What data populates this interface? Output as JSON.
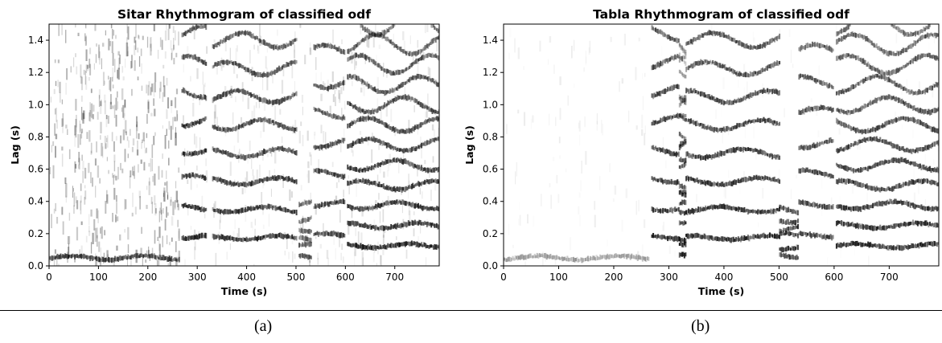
{
  "figure": {
    "caption_a": "(a)",
    "caption_b": "(b)"
  },
  "chart_data": [
    {
      "type": "heatmap",
      "title": "Sitar Rhythmogram of classified odf",
      "xlabel": "Time (s)",
      "ylabel": "Lag (s)",
      "xlim": [
        0,
        790
      ],
      "ylim": [
        0.0,
        1.5
      ],
      "xticks": [
        0,
        100,
        200,
        300,
        400,
        500,
        600,
        700
      ],
      "yticks": [
        0.0,
        0.2,
        0.4,
        0.6,
        0.8,
        1.0,
        1.2,
        1.4
      ],
      "xtick_labels": [
        "0",
        "100",
        "200",
        "300",
        "400",
        "500",
        "600",
        "700"
      ],
      "ytick_labels": [
        "0.0",
        "0.2",
        "0.4",
        "0.6",
        "0.8",
        "1.0",
        "1.2",
        "1.4"
      ],
      "colormap": "grayscale (white = low, black = high)",
      "colors": {
        "low": "#ffffff",
        "high": "#000000"
      },
      "segments": [
        {
          "start": 0,
          "end": 262,
          "lags": [
            0.05
          ],
          "background": 0.3,
          "ridge_level": 0.75
        },
        {
          "start": 268,
          "end": 318,
          "lags": [
            0.18,
            0.36,
            0.54,
            0.72,
            0.9,
            1.08,
            1.26,
            1.44
          ],
          "background": 0.12,
          "ridge_level": 0.85
        },
        {
          "start": 330,
          "end": 500,
          "lags": [
            0.175,
            0.35,
            0.525,
            0.7,
            0.875,
            1.05,
            1.225,
            1.4
          ],
          "background": 0.12,
          "ridge_level": 0.8
        },
        {
          "start": 505,
          "end": 530,
          "lags": [
            0.06,
            0.12,
            0.18,
            0.24,
            0.3,
            0.36
          ],
          "background": 0.15,
          "ridge_level": 0.65
        },
        {
          "start": 535,
          "end": 598,
          "lags": [
            0.19,
            0.38,
            0.57,
            0.76,
            0.95,
            1.14,
            1.33
          ],
          "background": 0.14,
          "ridge_level": 0.75
        },
        {
          "start": 603,
          "end": 790,
          "lags": [
            0.125,
            0.25,
            0.375,
            0.5,
            0.625,
            0.75,
            0.875,
            1.0,
            1.125,
            1.25,
            1.375,
            1.5
          ],
          "background": 0.12,
          "ridge_level": 0.85
        }
      ]
    },
    {
      "type": "heatmap",
      "title": "Tabla Rhythmogram of classified odf",
      "xlabel": "Time (s)",
      "ylabel": "Lag (s)",
      "xlim": [
        0,
        790
      ],
      "ylim": [
        0.0,
        1.5
      ],
      "xticks": [
        0,
        100,
        200,
        300,
        400,
        500,
        600,
        700
      ],
      "yticks": [
        0.0,
        0.2,
        0.4,
        0.6,
        0.8,
        1.0,
        1.2,
        1.4
      ],
      "xtick_labels": [
        "0",
        "100",
        "200",
        "300",
        "400",
        "500",
        "600",
        "700"
      ],
      "ytick_labels": [
        "0.0",
        "0.2",
        "0.4",
        "0.6",
        "0.8",
        "1.0",
        "1.2",
        "1.4"
      ],
      "colormap": "grayscale (white = low, black = high)",
      "colors": {
        "low": "#ffffff",
        "high": "#000000"
      },
      "segments": [
        {
          "start": 0,
          "end": 262,
          "lags": [
            0.05
          ],
          "background": 0.06,
          "ridge_level": 0.35
        },
        {
          "start": 268,
          "end": 318,
          "lags": [
            0.18,
            0.36,
            0.54,
            0.72,
            0.9,
            1.08,
            1.26,
            1.44
          ],
          "background": 0.03,
          "ridge_level": 0.85
        },
        {
          "start": 318,
          "end": 330,
          "lags": [
            0.06,
            0.12,
            0.18,
            0.24,
            0.3,
            0.36,
            0.42,
            0.48,
            0.54,
            0.6,
            0.66,
            0.72,
            0.78,
            0.84,
            0.9,
            0.96,
            1.02,
            1.08,
            1.14,
            1.2,
            1.26,
            1.32,
            1.38,
            1.44
          ],
          "background": 0.03,
          "ridge_level": 0.95
        },
        {
          "start": 330,
          "end": 500,
          "lags": [
            0.175,
            0.35,
            0.525,
            0.7,
            0.875,
            1.05,
            1.225,
            1.4
          ],
          "background": 0.03,
          "ridge_level": 0.85
        },
        {
          "start": 500,
          "end": 535,
          "lags": [
            0.06,
            0.12,
            0.18,
            0.24,
            0.3,
            0.36
          ],
          "background": 0.04,
          "ridge_level": 0.85
        },
        {
          "start": 535,
          "end": 598,
          "lags": [
            0.19,
            0.38,
            0.57,
            0.76,
            0.95,
            1.14,
            1.33
          ],
          "background": 0.03,
          "ridge_level": 0.75
        },
        {
          "start": 603,
          "end": 790,
          "lags": [
            0.125,
            0.25,
            0.375,
            0.5,
            0.625,
            0.75,
            0.875,
            1.0,
            1.125,
            1.25,
            1.375,
            1.5
          ],
          "background": 0.03,
          "ridge_level": 0.85
        }
      ]
    }
  ]
}
